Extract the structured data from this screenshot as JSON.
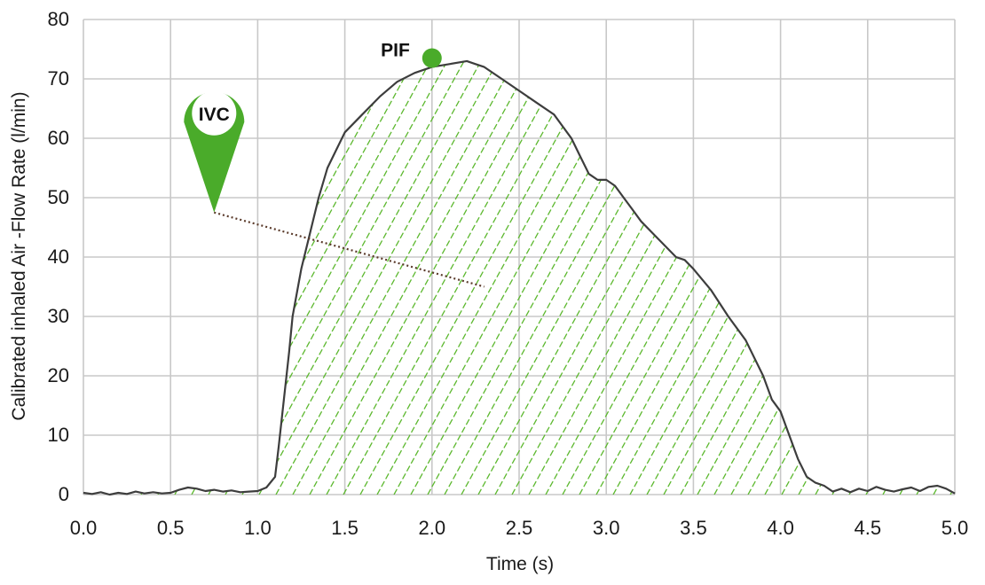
{
  "chart_data": {
    "type": "area",
    "xlabel": "Time (s)",
    "ylabel": "Calibrated inhaled Air -Flow Rate (l/min)",
    "xlim": [
      0,
      5
    ],
    "ylim": [
      0,
      80
    ],
    "x_ticks": [
      "0.0",
      "0.5",
      "1.0",
      "1.5",
      "2.0",
      "2.5",
      "3.0",
      "3.5",
      "4.0",
      "4.5",
      "5.0"
    ],
    "y_ticks": [
      "0",
      "10",
      "20",
      "30",
      "40",
      "50",
      "60",
      "70",
      "80"
    ],
    "grid": true,
    "fill": "green diagonal hatch under the curve",
    "series": [
      {
        "x": [
          0,
          0.05,
          0.1,
          0.15,
          0.2,
          0.25,
          0.3,
          0.35,
          0.4,
          0.45,
          0.5,
          0.55,
          0.6,
          0.65,
          0.7,
          0.75,
          0.8,
          0.85,
          0.9,
          0.95,
          1.0,
          1.05,
          1.1,
          1.12,
          1.15,
          1.18,
          1.2,
          1.25,
          1.3,
          1.35,
          1.4,
          1.45,
          1.5,
          1.6,
          1.7,
          1.8,
          1.9,
          2.0,
          2.1,
          2.2,
          2.25,
          2.3,
          2.4,
          2.5,
          2.6,
          2.7,
          2.75,
          2.8,
          2.85,
          2.9,
          2.95,
          3.0,
          3.05,
          3.1,
          3.15,
          3.2,
          3.3,
          3.4,
          3.45,
          3.5,
          3.6,
          3.7,
          3.8,
          3.9,
          3.95,
          4.0,
          4.05,
          4.1,
          4.15,
          4.2,
          4.25,
          4.3,
          4.35,
          4.4,
          4.45,
          4.5,
          4.55,
          4.6,
          4.65,
          4.7,
          4.75,
          4.8,
          4.85,
          4.9,
          4.95,
          5.0
        ],
        "y": [
          0.3,
          0.1,
          0.4,
          0.0,
          0.3,
          0.1,
          0.5,
          0.2,
          0.4,
          0.2,
          0.3,
          0.8,
          1.2,
          1.0,
          0.6,
          0.8,
          0.5,
          0.7,
          0.4,
          0.5,
          0.6,
          1.2,
          3.0,
          8.0,
          16.0,
          24.0,
          30.0,
          38.0,
          44.0,
          50.0,
          55.0,
          58.0,
          61.0,
          64.0,
          67.0,
          69.5,
          71.0,
          72.0,
          72.5,
          73.0,
          72.5,
          72.0,
          70.0,
          68.0,
          66.0,
          64.0,
          62.0,
          60.0,
          57.0,
          54.0,
          53.0,
          53.0,
          52.0,
          50.0,
          48.0,
          46.0,
          43.0,
          40.0,
          39.5,
          38.0,
          34.5,
          30.0,
          26.0,
          20.0,
          16.0,
          14.0,
          10.0,
          6.0,
          3.0,
          2.0,
          1.5,
          0.5,
          1.0,
          0.4,
          1.0,
          0.6,
          1.3,
          0.8,
          0.5,
          0.9,
          1.2,
          0.6,
          1.3,
          1.5,
          1.0,
          0.2
        ]
      }
    ],
    "annotations": [
      {
        "label": "PIF",
        "x": 2.0,
        "y": 73.5
      },
      {
        "label": "IVC",
        "x": 0.75,
        "y": 47.5,
        "line_to": {
          "x": 2.3,
          "y": 35
        }
      }
    ],
    "colors": {
      "curve": "#3d3d3d",
      "hatch": "#5cb82e",
      "marker": "#4aab2a",
      "grid": "#c8c8c8",
      "connector": "#5a3a2a"
    }
  }
}
